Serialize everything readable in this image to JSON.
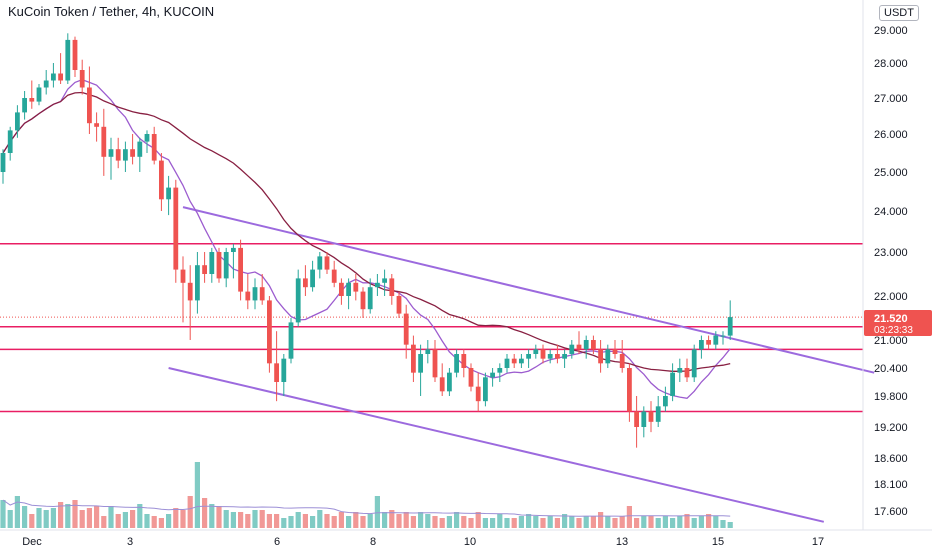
{
  "header": {
    "title": "KuCoin Token / Tether, 4h, KUCOIN",
    "currency": "USDT"
  },
  "price_label": {
    "value": "21.520",
    "countdown": "03:23:33"
  },
  "colors": {
    "up": "#26a69a",
    "down": "#ef5350",
    "up_vol": "#80cbc4",
    "down_vol": "#f19896",
    "ma_fast": "#9c5ccf",
    "ma_slow": "#882042",
    "level": "#e91e63",
    "trend": "#9c6ade",
    "price_line": "#ef5350",
    "axis_text": "#131722"
  },
  "chart_data": {
    "type": "candlestick",
    "y_ticks": [
      "29.000",
      "28.000",
      "27.000",
      "26.000",
      "25.000",
      "24.000",
      "23.000",
      "22.000",
      "21.000",
      "20.400",
      "19.800",
      "19.200",
      "18.600",
      "18.100",
      "17.600"
    ],
    "x_ticks": [
      "Dec",
      "3",
      "6",
      "8",
      "10",
      "13",
      "15",
      "17"
    ],
    "last_price": 21.52,
    "candles": [
      [
        25.0,
        25.6,
        24.7,
        25.5
      ],
      [
        25.5,
        26.2,
        25.3,
        26.1
      ],
      [
        26.1,
        26.8,
        25.9,
        26.6
      ],
      [
        26.6,
        27.2,
        26.4,
        27.0
      ],
      [
        27.0,
        27.5,
        26.7,
        26.9
      ],
      [
        26.9,
        27.4,
        26.8,
        27.3
      ],
      [
        27.3,
        27.8,
        27.1,
        27.5
      ],
      [
        27.5,
        28.0,
        27.3,
        27.7
      ],
      [
        27.7,
        28.3,
        27.4,
        27.5
      ],
      [
        27.5,
        28.9,
        27.4,
        28.7
      ],
      [
        28.7,
        28.8,
        27.6,
        27.8
      ],
      [
        27.8,
        28.1,
        27.1,
        27.3
      ],
      [
        27.3,
        27.9,
        26.0,
        26.3
      ],
      [
        26.3,
        26.6,
        25.8,
        26.2
      ],
      [
        26.2,
        26.7,
        24.9,
        25.4
      ],
      [
        25.4,
        25.9,
        24.8,
        25.6
      ],
      [
        25.6,
        25.9,
        25.1,
        25.3
      ],
      [
        25.3,
        25.8,
        25.0,
        25.6
      ],
      [
        25.6,
        26.0,
        25.2,
        25.4
      ],
      [
        25.4,
        25.9,
        25.0,
        25.8
      ],
      [
        25.8,
        26.1,
        25.5,
        26.0
      ],
      [
        26.0,
        26.2,
        25.2,
        25.3
      ],
      [
        25.3,
        25.5,
        24.0,
        24.3
      ],
      [
        24.3,
        24.9,
        23.9,
        24.6
      ],
      [
        24.6,
        24.8,
        22.3,
        22.6
      ],
      [
        22.6,
        22.9,
        21.4,
        22.3
      ],
      [
        22.3,
        22.7,
        21.0,
        21.9
      ],
      [
        21.9,
        23.0,
        21.6,
        22.7
      ],
      [
        22.7,
        23.0,
        22.3,
        22.5
      ],
      [
        22.5,
        23.1,
        22.3,
        23.0
      ],
      [
        23.0,
        23.1,
        22.3,
        22.4
      ],
      [
        22.4,
        23.1,
        22.2,
        23.0
      ],
      [
        23.0,
        23.2,
        22.4,
        23.1
      ],
      [
        23.1,
        23.3,
        21.9,
        22.1
      ],
      [
        22.1,
        22.5,
        21.7,
        21.9
      ],
      [
        21.9,
        22.4,
        21.7,
        22.2
      ],
      [
        22.2,
        22.5,
        21.8,
        21.9
      ],
      [
        21.9,
        22.0,
        20.3,
        20.5
      ],
      [
        20.5,
        21.2,
        19.7,
        20.1
      ],
      [
        20.1,
        20.7,
        19.8,
        20.6
      ],
      [
        20.6,
        21.5,
        20.5,
        21.4
      ],
      [
        21.4,
        22.6,
        21.3,
        22.4
      ],
      [
        22.4,
        22.7,
        22.0,
        22.2
      ],
      [
        22.2,
        22.8,
        22.1,
        22.6
      ],
      [
        22.6,
        23.0,
        22.4,
        22.9
      ],
      [
        22.9,
        23.0,
        22.5,
        22.6
      ],
      [
        22.6,
        22.8,
        22.2,
        22.3
      ],
      [
        22.3,
        22.4,
        21.8,
        22.0
      ],
      [
        22.0,
        22.4,
        21.7,
        22.3
      ],
      [
        22.3,
        22.5,
        21.9,
        22.1
      ],
      [
        22.1,
        22.2,
        21.5,
        21.7
      ],
      [
        21.7,
        22.4,
        21.6,
        22.2
      ],
      [
        22.2,
        22.5,
        22.0,
        22.3
      ],
      [
        22.3,
        22.6,
        22.0,
        22.4
      ],
      [
        22.4,
        22.5,
        21.8,
        22.0
      ],
      [
        22.0,
        22.1,
        21.5,
        21.6
      ],
      [
        21.6,
        21.8,
        20.6,
        20.9
      ],
      [
        20.9,
        21.1,
        20.1,
        20.3
      ],
      [
        20.3,
        20.9,
        19.8,
        20.7
      ],
      [
        20.7,
        21.0,
        20.5,
        20.8
      ],
      [
        20.8,
        21.0,
        20.1,
        20.2
      ],
      [
        20.2,
        20.5,
        19.8,
        19.9
      ],
      [
        19.9,
        20.4,
        19.8,
        20.3
      ],
      [
        20.3,
        20.8,
        20.2,
        20.7
      ],
      [
        20.7,
        20.8,
        20.2,
        20.4
      ],
      [
        20.4,
        20.5,
        19.9,
        20.0
      ],
      [
        20.0,
        20.3,
        19.5,
        19.7
      ],
      [
        19.7,
        20.3,
        19.6,
        20.2
      ],
      [
        20.2,
        20.4,
        20.0,
        20.3
      ],
      [
        20.3,
        20.5,
        20.1,
        20.4
      ],
      [
        20.4,
        20.7,
        20.3,
        20.6
      ],
      [
        20.6,
        20.7,
        20.4,
        20.5
      ],
      [
        20.5,
        20.7,
        20.4,
        20.6
      ],
      [
        20.6,
        20.8,
        20.4,
        20.7
      ],
      [
        20.7,
        20.9,
        20.6,
        20.8
      ],
      [
        20.8,
        20.9,
        20.5,
        20.6
      ],
      [
        20.6,
        20.8,
        20.5,
        20.7
      ],
      [
        20.7,
        20.9,
        20.5,
        20.6
      ],
      [
        20.6,
        20.8,
        20.4,
        20.7
      ],
      [
        20.7,
        21.0,
        20.6,
        20.9
      ],
      [
        20.9,
        21.2,
        20.7,
        20.8
      ],
      [
        20.8,
        21.1,
        20.6,
        21.0
      ],
      [
        21.0,
        21.1,
        20.7,
        20.8
      ],
      [
        20.8,
        21.0,
        20.3,
        20.5
      ],
      [
        20.5,
        20.9,
        20.4,
        20.8
      ],
      [
        20.8,
        21.0,
        20.6,
        20.7
      ],
      [
        20.7,
        21.0,
        20.3,
        20.4
      ],
      [
        20.4,
        20.5,
        19.3,
        19.5
      ],
      [
        19.5,
        19.8,
        18.8,
        19.2
      ],
      [
        19.2,
        19.6,
        19.0,
        19.5
      ],
      [
        19.5,
        19.7,
        19.1,
        19.3
      ],
      [
        19.3,
        19.8,
        19.2,
        19.6
      ],
      [
        19.6,
        20.0,
        19.5,
        19.8
      ],
      [
        19.8,
        20.5,
        19.7,
        20.3
      ],
      [
        20.3,
        20.6,
        20.1,
        20.4
      ],
      [
        20.4,
        20.6,
        20.1,
        20.2
      ],
      [
        20.2,
        20.9,
        20.1,
        20.8
      ],
      [
        20.8,
        21.1,
        20.6,
        21.0
      ],
      [
        21.0,
        21.1,
        20.8,
        20.9
      ],
      [
        20.9,
        21.2,
        20.8,
        21.1
      ],
      [
        21.1,
        21.2,
        20.9,
        21.1
      ],
      [
        21.1,
        21.9,
        21.0,
        21.52
      ]
    ],
    "volume": [
      14,
      9,
      16,
      11,
      7,
      10,
      9,
      10,
      13,
      12,
      14,
      9,
      10,
      11,
      6,
      11,
      7,
      8,
      9,
      12,
      7,
      6,
      5,
      7,
      10,
      9,
      16,
      33,
      15,
      12,
      11,
      9,
      8,
      8,
      7,
      9,
      9,
      7,
      7,
      5,
      6,
      8,
      7,
      6,
      9,
      7,
      6,
      8,
      6,
      8,
      6,
      7,
      16,
      8,
      9,
      7,
      8,
      6,
      8,
      7,
      6,
      5,
      6,
      8,
      6,
      5,
      8,
      5,
      5,
      7,
      5,
      5,
      6,
      7,
      6,
      5,
      6,
      5,
      7,
      6,
      5,
      6,
      6,
      8,
      6,
      5,
      6,
      11,
      5,
      6,
      6,
      5,
      6,
      5,
      6,
      7,
      5,
      6,
      7,
      6,
      4,
      3
    ],
    "support_lines": [
      23.2,
      21.3,
      20.8,
      19.5
    ],
    "trendlines": [
      {
        "from": {
          "bar": 25,
          "price": 24.1
        },
        "to": {
          "bar": 121,
          "price": 20.3
        }
      },
      {
        "from": {
          "bar": 23,
          "price": 20.4
        },
        "to": {
          "bar": 114,
          "price": 17.4
        }
      }
    ]
  }
}
